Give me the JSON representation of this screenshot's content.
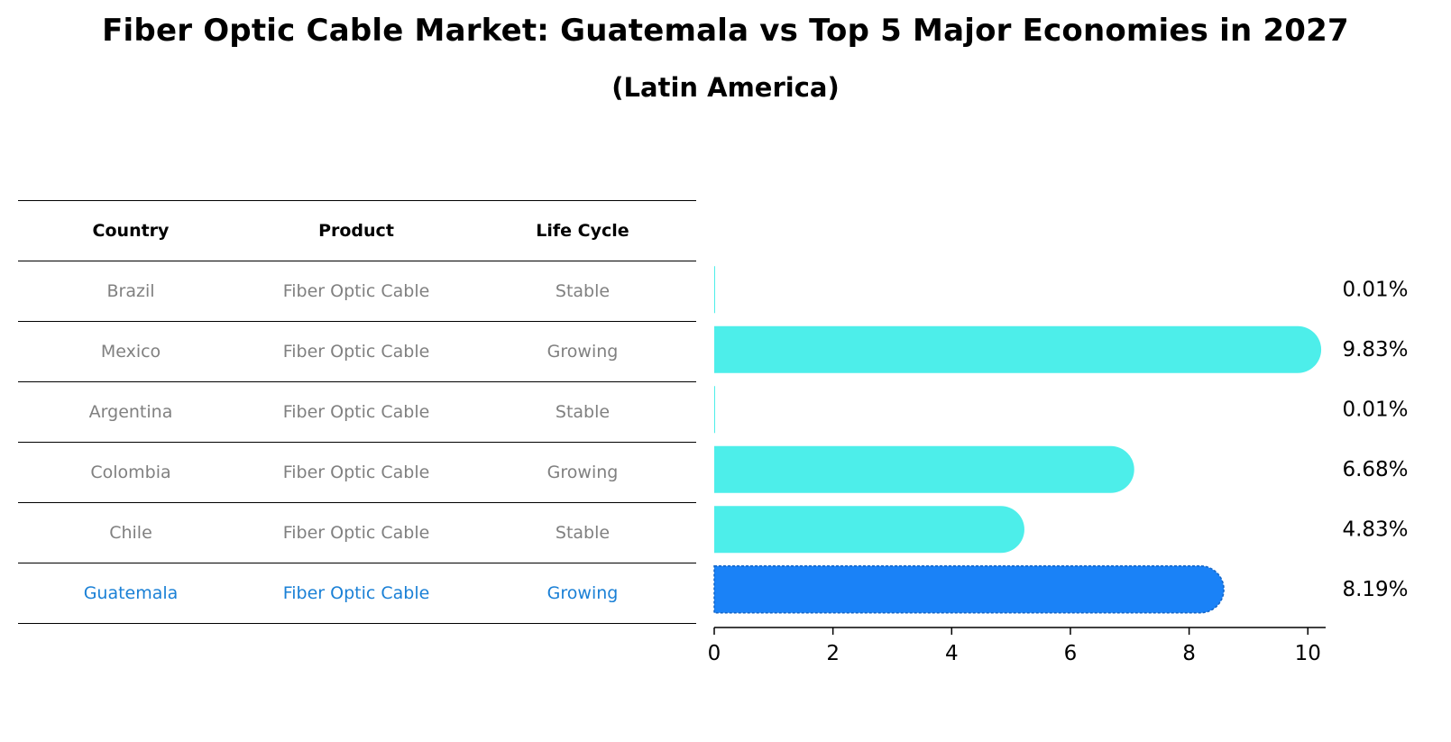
{
  "title": "Fiber Optic Cable Market: Guatemala vs Top 5 Major Economies in 2027",
  "subtitle": "(Latin America)",
  "table": {
    "headers": [
      "Country",
      "Product",
      "Life Cycle"
    ],
    "rows": [
      {
        "country": "Brazil",
        "product": "Fiber Optic Cable",
        "life_cycle": "Stable"
      },
      {
        "country": "Mexico",
        "product": "Fiber Optic Cable",
        "life_cycle": "Growing"
      },
      {
        "country": "Argentina",
        "product": "Fiber Optic Cable",
        "life_cycle": "Stable"
      },
      {
        "country": "Colombia",
        "product": "Fiber Optic Cable",
        "life_cycle": "Growing"
      },
      {
        "country": "Chile",
        "product": "Fiber Optic Cable",
        "life_cycle": "Stable"
      },
      {
        "country": "Guatemala",
        "product": "Fiber Optic Cable",
        "life_cycle": "Growing"
      }
    ]
  },
  "colors": {
    "bar": "#4deeea",
    "highlight_bar": "#1a82f7",
    "highlight_text": "#1a80d6",
    "muted_text": "#808080"
  },
  "chart_data": {
    "type": "bar",
    "orientation": "horizontal",
    "categories": [
      "Brazil",
      "Mexico",
      "Argentina",
      "Colombia",
      "Chile",
      "Guatemala"
    ],
    "values": [
      0.01,
      9.83,
      0.01,
      6.68,
      4.83,
      8.19
    ],
    "value_labels": [
      "0.01%",
      "9.83%",
      "0.01%",
      "6.68%",
      "4.83%",
      "8.19%"
    ],
    "highlight": "Guatemala",
    "xlim": [
      0,
      10.3
    ],
    "xticks": [
      0,
      2,
      4,
      6,
      8,
      10
    ],
    "xtick_labels": [
      "0",
      "2",
      "4",
      "6",
      "8",
      "10"
    ],
    "xlabel": "",
    "ylabel": "",
    "grid": false
  }
}
